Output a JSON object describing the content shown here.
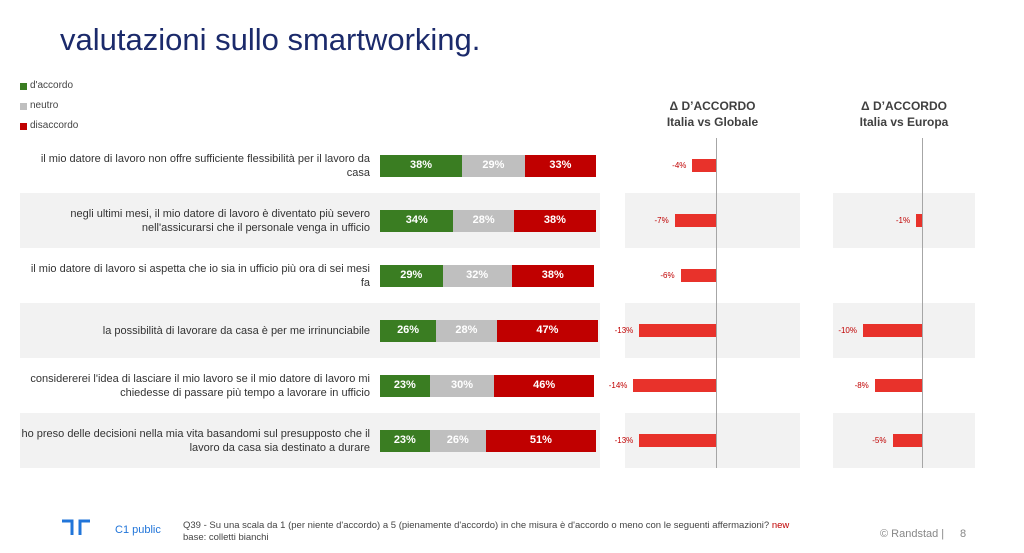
{
  "chart_data": [
    {
      "type": "stacked_bar",
      "title": "valutazioni sullo smartworking.",
      "categories": [
        "il mio datore di lavoro non offre sufficiente flessibilità per il lavoro da casa",
        "negli ultimi mesi, il mio datore di lavoro è diventato più severo nell'assicurarsi che il personale venga in ufficio",
        "il mio datore di lavoro si aspetta che io sia in ufficio più ora di sei mesi fa",
        "la possibilità di lavorare da casa è per me irrinunciabile",
        "considererei l'idea di lasciare il mio lavoro se il mio datore di lavoro mi chiedesse di passare più tempo a lavorare in ufficio",
        "ho preso delle decisioni nella mia vita basandomi sul presupposto che il lavoro da casa sia destinato a durare"
      ],
      "series": [
        {
          "name": "d'accordo",
          "color": "#3a7d22",
          "values": [
            38,
            34,
            29,
            26,
            23,
            23
          ],
          "value_labels": [
            "38%",
            "34%",
            "29%",
            "26%",
            "23%",
            "23%"
          ]
        },
        {
          "name": "neutro",
          "color": "#bfbfbf",
          "values": [
            29,
            28,
            32,
            28,
            30,
            26
          ],
          "value_labels": [
            "29%",
            "28%",
            "32%",
            "28%",
            "30%",
            "26%"
          ]
        },
        {
          "name": "disaccordo",
          "color": "#c00000",
          "values": [
            33,
            38,
            38,
            47,
            46,
            51
          ],
          "value_labels": [
            "33%",
            "38%",
            "38%",
            "47%",
            "46%",
            "51%"
          ]
        }
      ]
    },
    {
      "type": "bar",
      "title": "Δ D’ACCORDO",
      "subtitle": "Italia vs Globale",
      "color": "#e8322b",
      "values": [
        -4,
        -7,
        -6,
        -13,
        -14,
        -13
      ],
      "value_labels": [
        "-4%",
        "-7%",
        "-6%",
        "-13%",
        "-14%",
        "-13%"
      ]
    },
    {
      "type": "bar",
      "title": "Δ D’ACCORDO",
      "subtitle": "Italia vs Europa",
      "color": "#e8322b",
      "values": [
        null,
        -1,
        null,
        -10,
        -8,
        -5
      ],
      "value_labels": [
        null,
        "-1%",
        null,
        "-10%",
        "-8%",
        "-5%"
      ]
    }
  ],
  "footer": {
    "classification": "C1 public",
    "question": "Q39 - Su una scala da 1 (per niente d'accordo) a 5 (pienamente d'accordo) in che misura è d'accordo o meno con le seguenti affermazioni?",
    "flag": "new",
    "base": "base: colletti bianchi",
    "copyright": "© Randstad |",
    "page": 8
  }
}
